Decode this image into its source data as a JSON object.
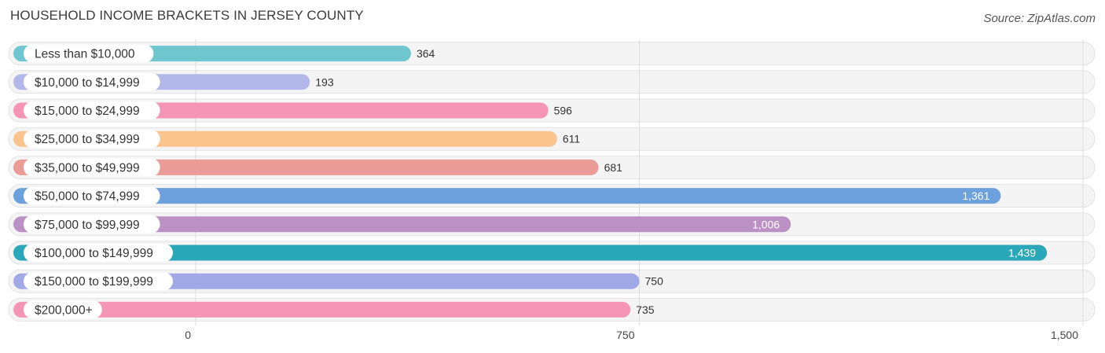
{
  "title": "HOUSEHOLD INCOME BRACKETS IN JERSEY COUNTY",
  "source": "Source: ZipAtlas.com",
  "chart_data": {
    "type": "bar",
    "orientation": "horizontal",
    "title": "HOUSEHOLD INCOME BRACKETS IN JERSEY COUNTY",
    "xlim": [
      0,
      1500
    ],
    "grid": true,
    "ticks": [
      {
        "value": 0,
        "label": "0"
      },
      {
        "value": 750,
        "label": "750"
      },
      {
        "value": 1500,
        "label": "1,500"
      }
    ],
    "categories": [
      "Less than $10,000",
      "$10,000 to $14,999",
      "$15,000 to $24,999",
      "$25,000 to $34,999",
      "$35,000 to $49,999",
      "$50,000 to $74,999",
      "$75,000 to $99,999",
      "$100,000 to $149,999",
      "$150,000 to $199,999",
      "$200,000+"
    ],
    "values": [
      364,
      193,
      596,
      611,
      681,
      1361,
      1006,
      1439,
      750,
      735
    ],
    "value_labels": [
      "364",
      "193",
      "596",
      "611",
      "681",
      "1,361",
      "1,006",
      "1,439",
      "750",
      "735"
    ],
    "colors": [
      "#6fc6cf",
      "#b3b8ea",
      "#f595b6",
      "#fbc38d",
      "#ec9c97",
      "#6da1de",
      "#bb90c4",
      "#2aa7b8",
      "#a0a8e6",
      "#f595b6"
    ]
  }
}
